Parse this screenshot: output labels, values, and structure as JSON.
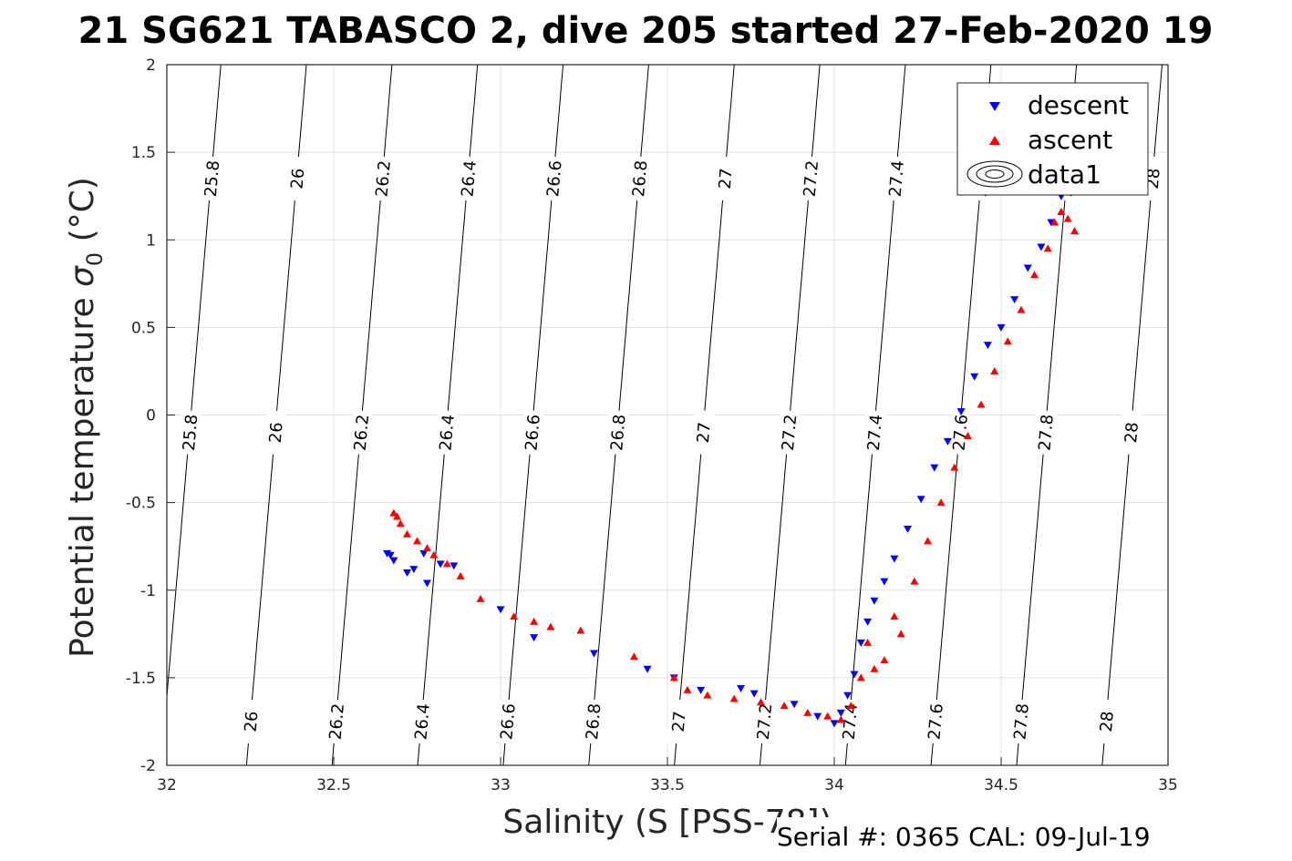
{
  "chart_data": {
    "type": "scatter",
    "title": "21 SG621 TABASCO 2, dive 205 started 27-Feb-2020 19",
    "xlabel": "Salinity (S [PSS-78])",
    "ylabel_main": "Potential temperature",
    "ylabel_symbol": "σ",
    "ylabel_subscript": "0",
    "ylabel_unit": "(°C)",
    "xlim": [
      32,
      35
    ],
    "ylim": [
      -2,
      2
    ],
    "xticks": [
      "32",
      "32.5",
      "33",
      "33.5",
      "34",
      "34.5",
      "35"
    ],
    "yticks": [
      "-2",
      "-1.5",
      "-1",
      "-0.5",
      "0",
      "0.5",
      "1",
      "1.5",
      "2"
    ],
    "grid": true,
    "legend_position": "top-right",
    "legend": [
      "descent",
      "ascent",
      "data1"
    ],
    "colors": {
      "descent": "#0000ff",
      "ascent": "#ff0000",
      "contour": "#000000",
      "grid": "#e0e0e0"
    },
    "contour_levels": [
      "25.8",
      "26",
      "26.2",
      "26.4",
      "26.6",
      "26.8",
      "27",
      "27.2",
      "27.4",
      "27.6",
      "27.8",
      "28"
    ],
    "series": [
      {
        "name": "descent",
        "marker": "triangle-down",
        "color": "#0000ff",
        "x": [
          32.66,
          32.67,
          32.68,
          32.72,
          32.74,
          32.77,
          32.78,
          32.82,
          32.86,
          33.0,
          33.1,
          33.28,
          33.44,
          33.52,
          33.6,
          33.72,
          33.76,
          33.88,
          33.95,
          34.0,
          34.02,
          34.04,
          34.06,
          34.08,
          34.1,
          34.12,
          34.15,
          34.18,
          34.22,
          34.26,
          34.3,
          34.34,
          34.38,
          34.42,
          34.46,
          34.5,
          34.54,
          34.58,
          34.62,
          34.65,
          34.68
        ],
        "y": [
          -0.79,
          -0.8,
          -0.83,
          -0.9,
          -0.88,
          -0.79,
          -0.96,
          -0.85,
          -0.86,
          -1.11,
          -1.27,
          -1.36,
          -1.45,
          -1.5,
          -1.57,
          -1.56,
          -1.59,
          -1.65,
          -1.72,
          -1.76,
          -1.7,
          -1.6,
          -1.48,
          -1.3,
          -1.18,
          -1.06,
          -0.95,
          -0.82,
          -0.65,
          -0.48,
          -0.3,
          -0.15,
          0.02,
          0.22,
          0.4,
          0.5,
          0.66,
          0.84,
          0.96,
          1.1,
          1.25
        ]
      },
      {
        "name": "ascent",
        "marker": "triangle-up",
        "color": "#ff0000",
        "x": [
          32.68,
          32.69,
          32.7,
          32.72,
          32.75,
          32.78,
          32.8,
          32.84,
          32.88,
          32.94,
          33.04,
          33.1,
          33.15,
          33.24,
          33.4,
          33.52,
          33.56,
          33.62,
          33.7,
          33.78,
          33.85,
          33.92,
          33.98,
          34.02,
          34.05,
          34.08,
          34.1,
          34.12,
          34.15,
          34.18,
          34.2,
          34.24,
          34.28,
          34.32,
          34.36,
          34.4,
          34.44,
          34.48,
          34.52,
          34.56,
          34.6,
          34.64,
          34.66,
          34.68,
          34.7,
          34.72
        ],
        "y": [
          -0.56,
          -0.58,
          -0.62,
          -0.68,
          -0.72,
          -0.76,
          -0.8,
          -0.85,
          -0.92,
          -1.05,
          -1.15,
          -1.18,
          -1.21,
          -1.23,
          -1.38,
          -1.5,
          -1.57,
          -1.6,
          -1.62,
          -1.64,
          -1.66,
          -1.7,
          -1.72,
          -1.74,
          -1.66,
          -1.5,
          -1.3,
          -1.45,
          -1.4,
          -1.15,
          -1.25,
          -0.95,
          -0.72,
          -0.5,
          -0.3,
          -0.12,
          0.06,
          0.25,
          0.42,
          0.6,
          0.8,
          0.95,
          1.1,
          1.16,
          1.12,
          1.05
        ]
      }
    ]
  },
  "footer": "Serial #: 0365  CAL: 09-Jul-19"
}
